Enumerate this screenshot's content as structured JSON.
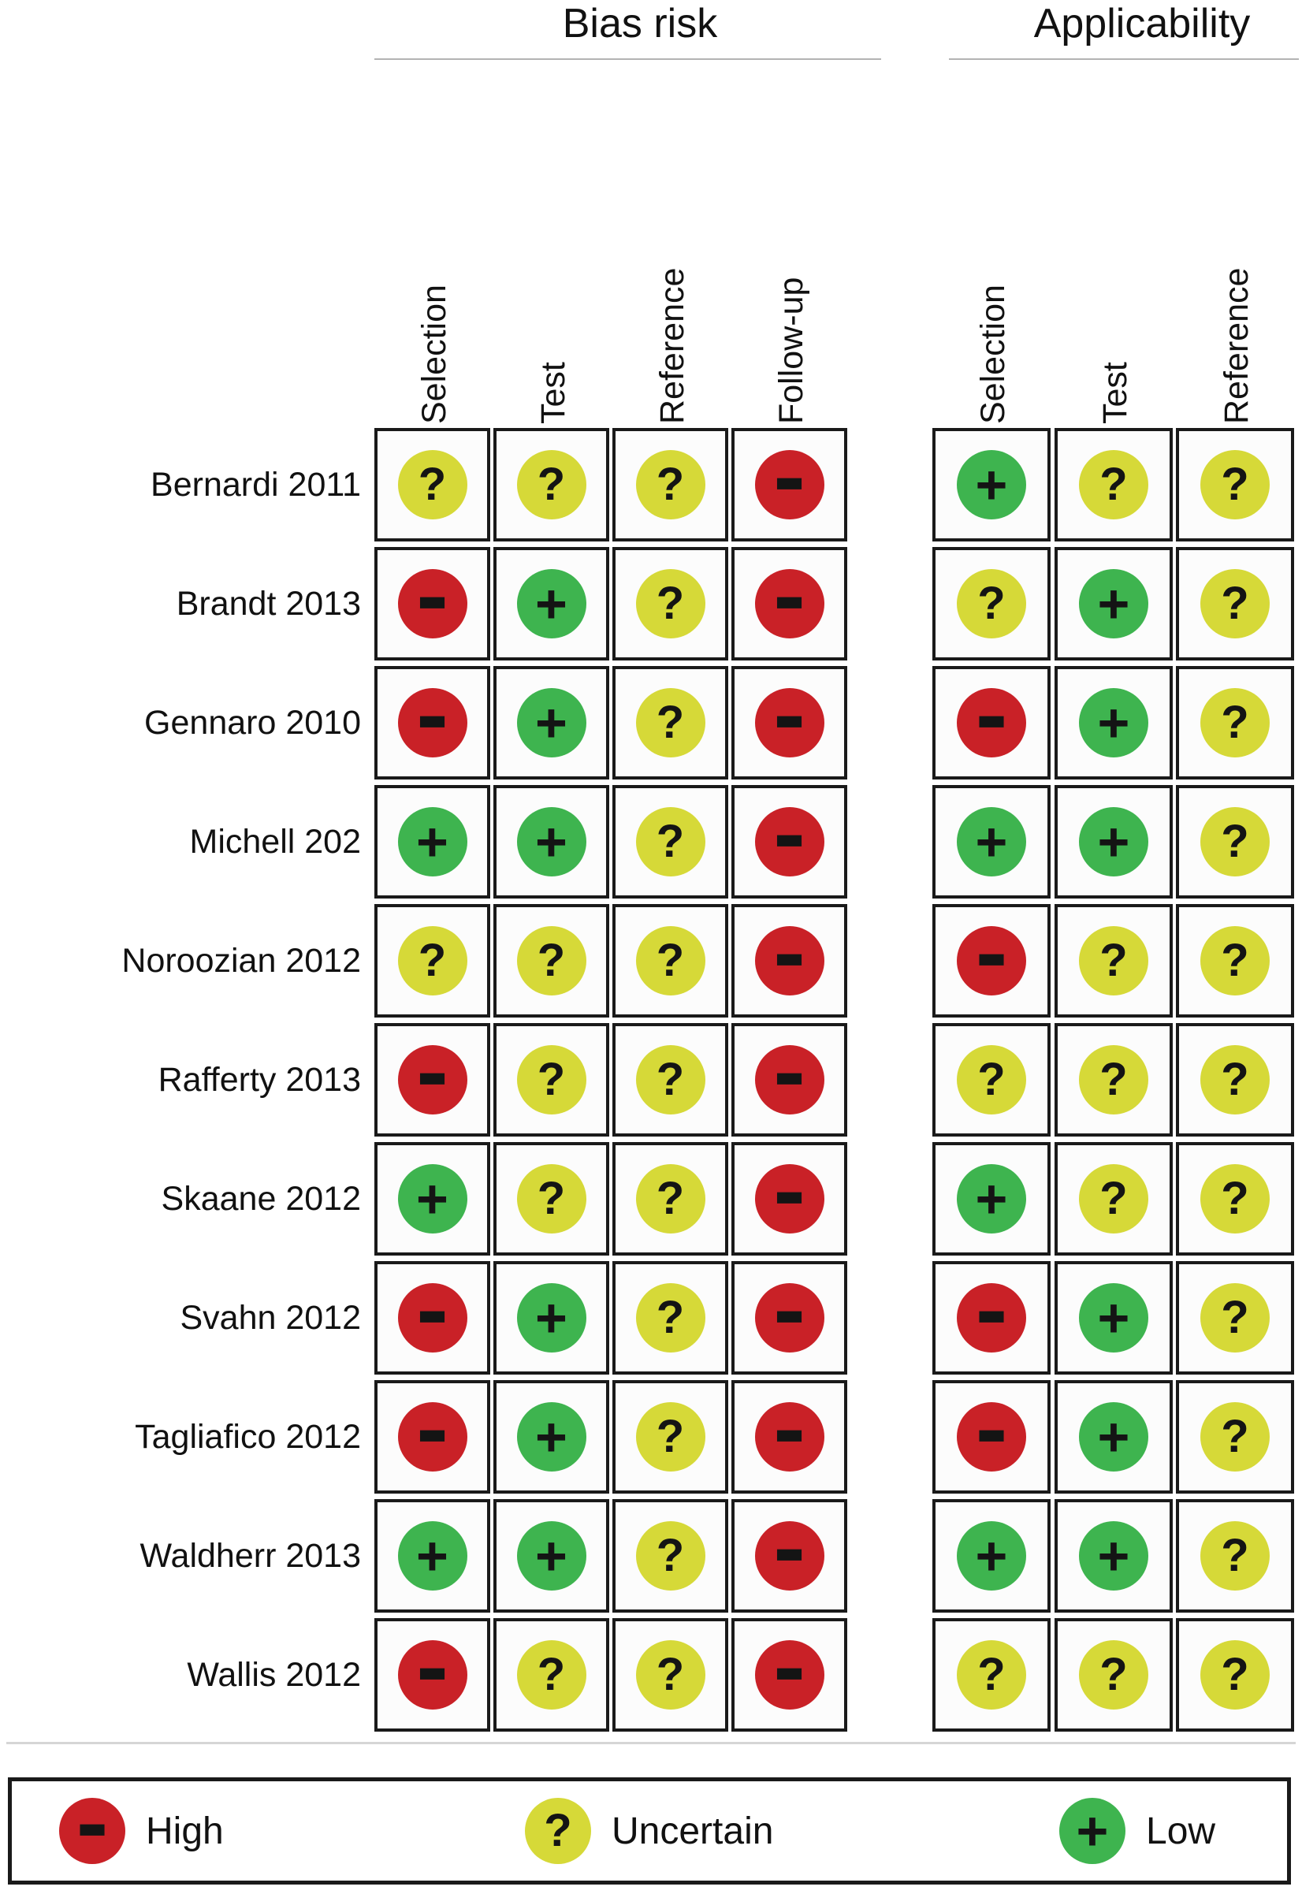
{
  "figure": {
    "groups": [
      {
        "id": "bias",
        "title": "Bias risk",
        "columns": [
          "Selection",
          "Test",
          "Reference",
          "Follow-up"
        ]
      },
      {
        "id": "applicability",
        "title": "Applicability",
        "columns": [
          "Selection",
          "Test",
          "Reference"
        ]
      }
    ],
    "studies": [
      {
        "label": "Bernardi 2011",
        "bias": [
          "uncertain",
          "uncertain",
          "uncertain",
          "high"
        ],
        "applicability": [
          "low",
          "uncertain",
          "uncertain"
        ]
      },
      {
        "label": "Brandt 2013",
        "bias": [
          "high",
          "low",
          "uncertain",
          "high"
        ],
        "applicability": [
          "uncertain",
          "low",
          "uncertain"
        ]
      },
      {
        "label": "Gennaro 2010",
        "bias": [
          "high",
          "low",
          "uncertain",
          "high"
        ],
        "applicability": [
          "high",
          "low",
          "uncertain"
        ]
      },
      {
        "label": "Michell 202",
        "bias": [
          "low",
          "low",
          "uncertain",
          "high"
        ],
        "applicability": [
          "low",
          "low",
          "uncertain"
        ]
      },
      {
        "label": "Noroozian 2012",
        "bias": [
          "uncertain",
          "uncertain",
          "uncertain",
          "high"
        ],
        "applicability": [
          "high",
          "uncertain",
          "uncertain"
        ]
      },
      {
        "label": "Rafferty 2013",
        "bias": [
          "high",
          "uncertain",
          "uncertain",
          "high"
        ],
        "applicability": [
          "uncertain",
          "uncertain",
          "uncertain"
        ]
      },
      {
        "label": "Skaane 2012",
        "bias": [
          "low",
          "uncertain",
          "uncertain",
          "high"
        ],
        "applicability": [
          "low",
          "uncertain",
          "uncertain"
        ]
      },
      {
        "label": "Svahn 2012",
        "bias": [
          "high",
          "low",
          "uncertain",
          "high"
        ],
        "applicability": [
          "high",
          "low",
          "uncertain"
        ]
      },
      {
        "label": "Tagliafico 2012",
        "bias": [
          "high",
          "low",
          "uncertain",
          "high"
        ],
        "applicability": [
          "high",
          "low",
          "uncertain"
        ]
      },
      {
        "label": "Waldherr 2013",
        "bias": [
          "low",
          "low",
          "uncertain",
          "high"
        ],
        "applicability": [
          "low",
          "low",
          "uncertain"
        ]
      },
      {
        "label": "Wallis 2012",
        "bias": [
          "high",
          "uncertain",
          "uncertain",
          "high"
        ],
        "applicability": [
          "uncertain",
          "uncertain",
          "uncertain"
        ]
      }
    ]
  },
  "legend": {
    "items": [
      {
        "status": "high",
        "label": "High"
      },
      {
        "status": "uncertain",
        "label": "Uncertain"
      },
      {
        "status": "low",
        "label": "Low"
      }
    ],
    "symbols": {
      "high": "−",
      "uncertain": "?",
      "low": "+"
    }
  },
  "colors": {
    "high": "#c92127",
    "uncertain": "#d6d938",
    "low": "#3eb44f",
    "border": "#1a1a1a",
    "underline": "#b3b3b3"
  },
  "chart_data": {
    "type": "heatmap",
    "column_groups": [
      "Bias risk",
      "Applicability"
    ],
    "columns": [
      {
        "group": "Bias risk",
        "label": "Selection"
      },
      {
        "group": "Bias risk",
        "label": "Test"
      },
      {
        "group": "Bias risk",
        "label": "Reference"
      },
      {
        "group": "Bias risk",
        "label": "Follow-up"
      },
      {
        "group": "Applicability",
        "label": "Selection"
      },
      {
        "group": "Applicability",
        "label": "Test"
      },
      {
        "group": "Applicability",
        "label": "Reference"
      }
    ],
    "rows": [
      "Bernardi 2011",
      "Brandt 2013",
      "Gennaro 2010",
      "Michell 202",
      "Noroozian 2012",
      "Rafferty 2013",
      "Skaane 2012",
      "Svahn 2012",
      "Tagliafico 2012",
      "Waldherr 2013",
      "Wallis 2012"
    ],
    "values": [
      [
        "uncertain",
        "uncertain",
        "uncertain",
        "high",
        "low",
        "uncertain",
        "uncertain"
      ],
      [
        "high",
        "low",
        "uncertain",
        "high",
        "uncertain",
        "low",
        "uncertain"
      ],
      [
        "high",
        "low",
        "uncertain",
        "high",
        "high",
        "low",
        "uncertain"
      ],
      [
        "low",
        "low",
        "uncertain",
        "high",
        "low",
        "low",
        "uncertain"
      ],
      [
        "uncertain",
        "uncertain",
        "uncertain",
        "high",
        "high",
        "uncertain",
        "uncertain"
      ],
      [
        "high",
        "uncertain",
        "uncertain",
        "high",
        "uncertain",
        "uncertain",
        "uncertain"
      ],
      [
        "low",
        "uncertain",
        "uncertain",
        "high",
        "low",
        "uncertain",
        "uncertain"
      ],
      [
        "high",
        "low",
        "uncertain",
        "high",
        "high",
        "low",
        "uncertain"
      ],
      [
        "high",
        "low",
        "uncertain",
        "high",
        "high",
        "low",
        "uncertain"
      ],
      [
        "low",
        "low",
        "uncertain",
        "high",
        "low",
        "low",
        "uncertain"
      ],
      [
        "high",
        "uncertain",
        "uncertain",
        "high",
        "uncertain",
        "uncertain",
        "uncertain"
      ]
    ],
    "value_legend": {
      "high": "High",
      "uncertain": "Uncertain",
      "low": "Low"
    },
    "cell_colors": {
      "high": "#c92127",
      "uncertain": "#d6d938",
      "low": "#3eb44f"
    },
    "legend_position": "bottom"
  }
}
